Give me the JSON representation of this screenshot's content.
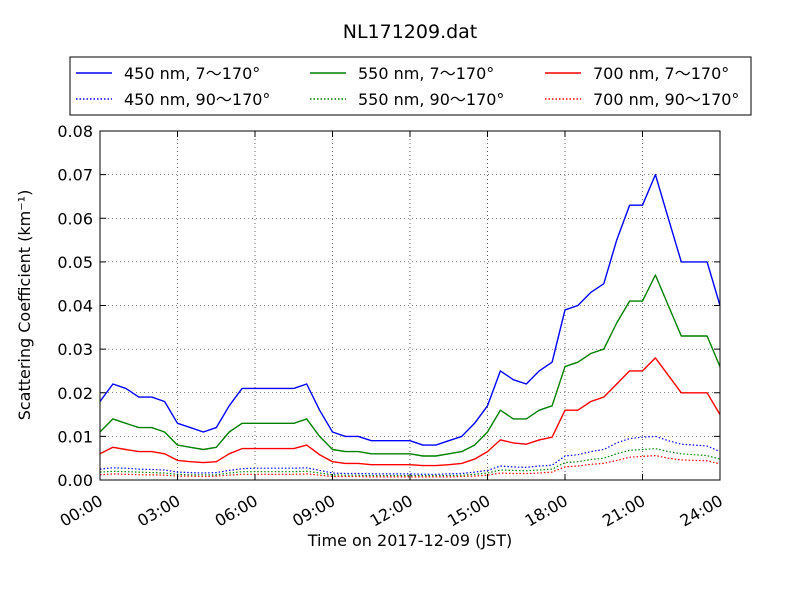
{
  "chart_data": {
    "type": "line",
    "title": "NL171209.dat",
    "xlabel": "Time on 2017-12-09 (JST)",
    "ylabel": "Scattering Coefficient (km⁻¹)",
    "xlim": [
      0,
      24
    ],
    "ylim": [
      0,
      0.08
    ],
    "x_ticks": [
      0,
      3,
      6,
      9,
      12,
      15,
      18,
      21,
      24
    ],
    "x_tick_labels": [
      "00:00",
      "03:00",
      "06:00",
      "09:00",
      "12:00",
      "15:00",
      "18:00",
      "21:00",
      "24:00"
    ],
    "y_ticks": [
      0,
      0.01,
      0.02,
      0.03,
      0.04,
      0.05,
      0.06,
      0.07,
      0.08
    ],
    "y_tick_labels": [
      "0.00",
      "0.01",
      "0.02",
      "0.03",
      "0.04",
      "0.05",
      "0.06",
      "0.07",
      "0.08"
    ],
    "grid": true,
    "legend_position": "top, above plot",
    "x": [
      0,
      0.5,
      1,
      1.5,
      2,
      2.5,
      3,
      3.5,
      4,
      4.5,
      5,
      5.5,
      6,
      6.5,
      7,
      7.5,
      8,
      8.5,
      9,
      9.5,
      10,
      10.5,
      11,
      11.5,
      12,
      12.5,
      13,
      13.5,
      14,
      14.5,
      15,
      15.5,
      16,
      16.5,
      17,
      17.5,
      18,
      18.5,
      19,
      19.5,
      20,
      20.5,
      21,
      21.5,
      22,
      22.5,
      23,
      23.5,
      24
    ],
    "series": [
      {
        "name": "450 nm, 7～170°",
        "color": "#0000ff",
        "style": "solid",
        "values": [
          0.018,
          0.022,
          0.021,
          0.019,
          0.019,
          0.018,
          0.013,
          0.012,
          0.011,
          0.012,
          0.017,
          0.021,
          0.021,
          0.021,
          0.021,
          0.021,
          0.022,
          0.016,
          0.011,
          0.01,
          0.01,
          0.009,
          0.009,
          0.009,
          0.009,
          0.008,
          0.008,
          0.009,
          0.01,
          0.013,
          0.017,
          0.025,
          0.023,
          0.022,
          0.025,
          0.027,
          0.039,
          0.04,
          0.043,
          0.045,
          0.055,
          0.063,
          0.063,
          0.07,
          0.06,
          0.05,
          0.05,
          0.05,
          0.04
        ]
      },
      {
        "name": "450 nm, 90～170°",
        "color": "#0000ff",
        "style": "dotted",
        "values": [
          0.0025,
          0.0028,
          0.0027,
          0.0025,
          0.0024,
          0.0023,
          0.0018,
          0.0017,
          0.0016,
          0.0017,
          0.0022,
          0.0026,
          0.0027,
          0.0027,
          0.0027,
          0.0027,
          0.0028,
          0.0022,
          0.0016,
          0.0015,
          0.0015,
          0.0014,
          0.0014,
          0.0014,
          0.0014,
          0.0013,
          0.0013,
          0.0014,
          0.0015,
          0.0018,
          0.0022,
          0.0032,
          0.003,
          0.0029,
          0.0032,
          0.0034,
          0.0055,
          0.0058,
          0.0065,
          0.007,
          0.0085,
          0.0095,
          0.0098,
          0.01,
          0.009,
          0.0082,
          0.008,
          0.0078,
          0.0065
        ]
      },
      {
        "name": "550 nm, 7～170°",
        "color": "#008000",
        "style": "solid",
        "values": [
          0.011,
          0.014,
          0.013,
          0.012,
          0.012,
          0.011,
          0.008,
          0.0075,
          0.007,
          0.0075,
          0.011,
          0.013,
          0.013,
          0.013,
          0.013,
          0.013,
          0.014,
          0.01,
          0.007,
          0.0065,
          0.0065,
          0.006,
          0.006,
          0.006,
          0.006,
          0.0055,
          0.0055,
          0.006,
          0.0065,
          0.008,
          0.011,
          0.016,
          0.014,
          0.014,
          0.016,
          0.017,
          0.026,
          0.027,
          0.029,
          0.03,
          0.036,
          0.041,
          0.041,
          0.047,
          0.04,
          0.033,
          0.033,
          0.033,
          0.026
        ]
      },
      {
        "name": "550 nm, 90～170°",
        "color": "#008000",
        "style": "dotted",
        "values": [
          0.0018,
          0.002,
          0.0019,
          0.0018,
          0.0017,
          0.0016,
          0.0013,
          0.0012,
          0.0012,
          0.0012,
          0.0016,
          0.0019,
          0.0019,
          0.0019,
          0.0019,
          0.0019,
          0.002,
          0.0016,
          0.0012,
          0.0011,
          0.0011,
          0.001,
          0.001,
          0.001,
          0.001,
          0.001,
          0.001,
          0.001,
          0.0011,
          0.0013,
          0.0016,
          0.0023,
          0.0022,
          0.0021,
          0.0023,
          0.0025,
          0.004,
          0.0042,
          0.0047,
          0.005,
          0.006,
          0.0068,
          0.007,
          0.0072,
          0.0065,
          0.006,
          0.0058,
          0.0056,
          0.0048
        ]
      },
      {
        "name": "700 nm, 7～170°",
        "color": "#ff0000",
        "style": "solid",
        "values": [
          0.006,
          0.0075,
          0.007,
          0.0065,
          0.0065,
          0.006,
          0.0045,
          0.0042,
          0.004,
          0.0042,
          0.006,
          0.0072,
          0.0072,
          0.0072,
          0.0072,
          0.0072,
          0.008,
          0.0058,
          0.0042,
          0.0038,
          0.0038,
          0.0035,
          0.0035,
          0.0035,
          0.0035,
          0.0033,
          0.0033,
          0.0035,
          0.0038,
          0.0048,
          0.0065,
          0.0092,
          0.0085,
          0.0082,
          0.0092,
          0.0098,
          0.016,
          0.016,
          0.018,
          0.019,
          0.022,
          0.025,
          0.025,
          0.028,
          0.024,
          0.02,
          0.02,
          0.02,
          0.015
        ]
      },
      {
        "name": "700 nm, 90～170°",
        "color": "#ff0000",
        "style": "dotted",
        "values": [
          0.0012,
          0.0014,
          0.0013,
          0.0012,
          0.0012,
          0.0011,
          0.0009,
          0.0009,
          0.0008,
          0.0009,
          0.0011,
          0.0013,
          0.0013,
          0.0013,
          0.0013,
          0.0013,
          0.0014,
          0.0011,
          0.0008,
          0.0008,
          0.0008,
          0.0007,
          0.0007,
          0.0007,
          0.0007,
          0.0007,
          0.0007,
          0.0007,
          0.0008,
          0.0009,
          0.0011,
          0.0016,
          0.0015,
          0.0015,
          0.0016,
          0.0018,
          0.003,
          0.0032,
          0.0036,
          0.0038,
          0.0045,
          0.0052,
          0.0054,
          0.0056,
          0.005,
          0.0046,
          0.0045,
          0.0044,
          0.0037
        ]
      }
    ]
  }
}
